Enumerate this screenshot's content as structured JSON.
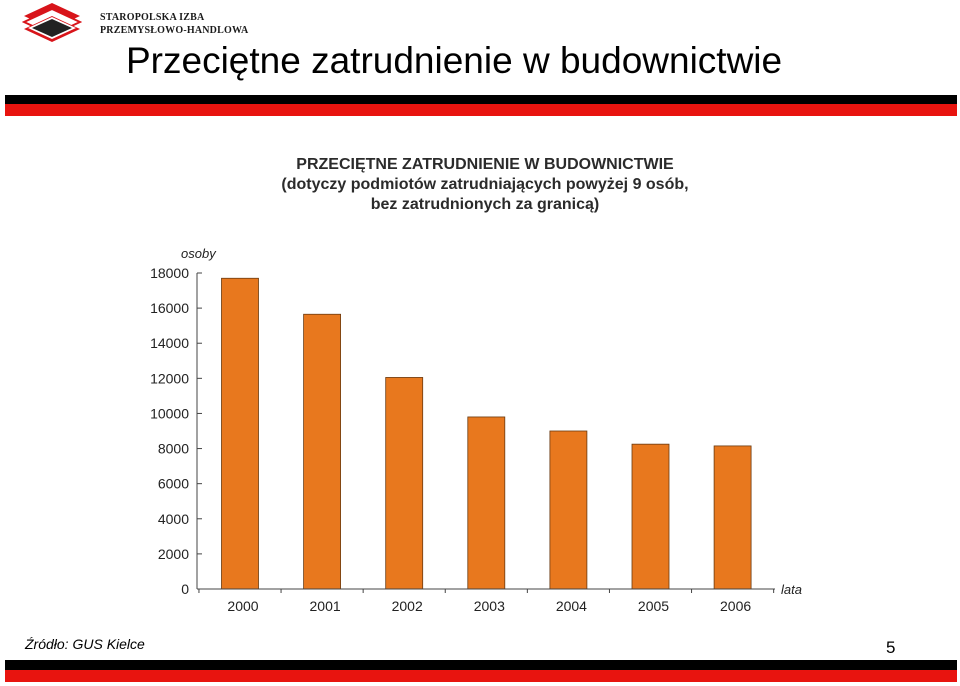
{
  "header": {
    "logo_line1": "STAROPOLSKA IZBA",
    "logo_line2": "PRZEMYSŁOWO-HANDLOWA",
    "title": "Przeciętne zatrudnienie w budownictwie"
  },
  "colors": {
    "bar": "#e8781e",
    "band_red": "#e8140f",
    "band_black": "#000000"
  },
  "chart_data": {
    "type": "bar",
    "title_lines": [
      "PRZECIĘTNE ZATRUDNIENIE W BUDOWNICTWIE",
      "(dotyczy podmiotów zatrudniających powyżej 9 osób,",
      "bez zatrudnionych za granicą)"
    ],
    "ylabel": "osoby",
    "xlabel": "lata",
    "categories": [
      "2000",
      "2001",
      "2002",
      "2003",
      "2004",
      "2005",
      "2006"
    ],
    "values": [
      17700,
      15650,
      12050,
      9800,
      9000,
      8250,
      8150
    ],
    "ylim": [
      0,
      18000
    ],
    "yticks": [
      "0",
      "2000",
      "4000",
      "6000",
      "8000",
      "10000",
      "12000",
      "14000",
      "16000",
      "18000"
    ],
    "grid": false,
    "legend": "none"
  },
  "footer": {
    "source": "Źródło: GUS Kielce",
    "page": "5"
  }
}
